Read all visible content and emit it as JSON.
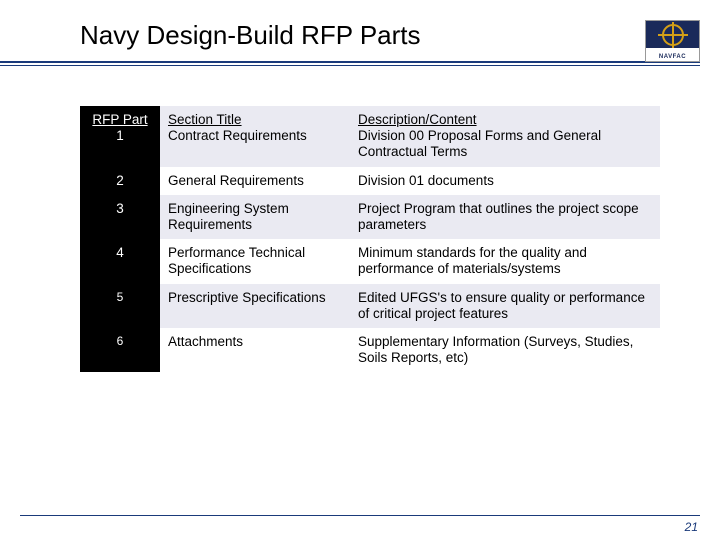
{
  "title": "Navy Design-Build RFP Parts",
  "logo": {
    "label": "NAVFAC"
  },
  "table": {
    "header": {
      "part_label": "RFP Part",
      "title_label": "Section Title",
      "desc_label": "Description/Content"
    },
    "rows": [
      {
        "part": "1",
        "title": "Contract Requirements",
        "desc": "Division 00 Proposal Forms and General Contractual Terms",
        "zebra": "light"
      },
      {
        "part": "2",
        "title": "General Requirements",
        "desc": "Division 01 documents",
        "zebra": "white"
      },
      {
        "part": "3",
        "title": "Engineering System Requirements",
        "desc": "Project Program that outlines the project scope parameters",
        "zebra": "light"
      },
      {
        "part": "4",
        "title": "Performance Technical Specifications",
        "desc": "Minimum standards for the quality and performance of materials/systems",
        "zebra": "white"
      },
      {
        "part": "5",
        "title": "Prescriptive Specifications",
        "desc": "Edited UFGS's to ensure quality or performance of critical project features",
        "zebra": "light"
      },
      {
        "part": "6",
        "title": "Attachments",
        "desc": "Supplementary Information (Surveys, Studies, Soils Reports, etc)",
        "zebra": "white"
      }
    ]
  },
  "page_number": "21",
  "colors": {
    "rule": "#1a3a7a",
    "part_bg": "#000000",
    "part_fg": "#ffffff",
    "zebra_light": "#eaeaf2",
    "zebra_white": "#ffffff",
    "page_num": "#1a3a7a"
  }
}
